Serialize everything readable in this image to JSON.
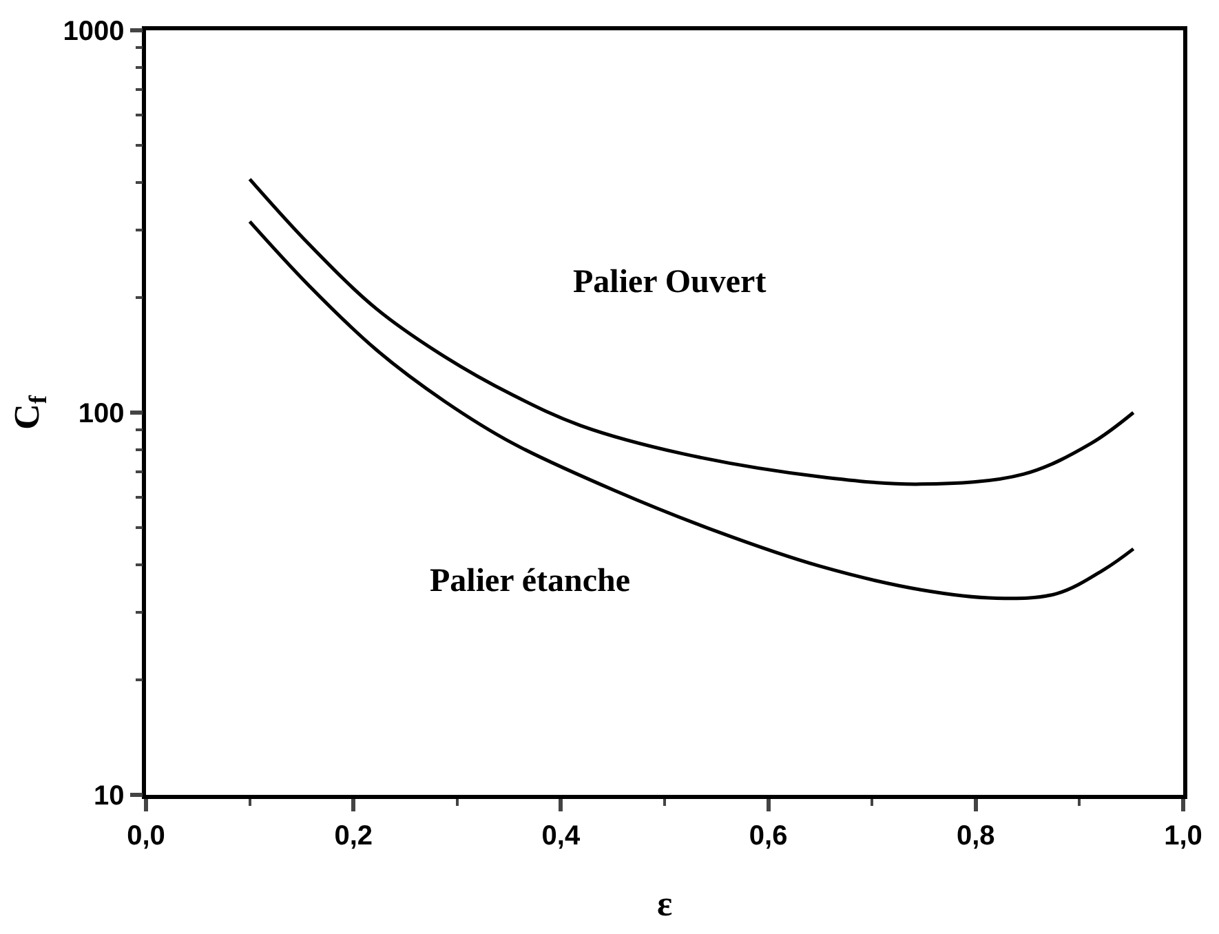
{
  "chart_data": {
    "type": "line",
    "xlabel": "ε",
    "ylabel": "C$_{f}$",
    "log": "y",
    "legend": false,
    "marker": "none",
    "line_style": "solid",
    "xlim": [
      0,
      1
    ],
    "xticks": [
      {
        "value": 0,
        "label": "0,0"
      },
      {
        "value": 0.2,
        "label": "0,2"
      },
      {
        "value": 0.4,
        "label": "0,4"
      },
      {
        "value": 0.6,
        "label": "0,6"
      },
      {
        "value": 0.8,
        "label": "0,8"
      },
      {
        "value": 1,
        "label": "1,0"
      }
    ],
    "ylim": [
      10,
      1000
    ],
    "yticks": [
      10,
      100,
      1000
    ],
    "series": [
      {
        "color": "#000000",
        "x": [
          0.1,
          0.157,
          0.222,
          0.288,
          0.354,
          0.419,
          0.518,
          0.649,
          0.747,
          0.846,
          0.911,
          0.952
        ],
        "values": [
          408,
          276,
          187,
          140,
          111,
          92.5,
          78,
          68,
          65,
          69,
          83,
          100
        ]
      },
      {
        "color": "#000000",
        "x": [
          0.1,
          0.157,
          0.222,
          0.288,
          0.354,
          0.452,
          0.551,
          0.649,
          0.747,
          0.82,
          0.878,
          0.924,
          0.952
        ],
        "values": [
          316,
          215,
          146,
          107,
          83,
          62.5,
          48.8,
          39.7,
          34.4,
          32.7,
          33.6,
          38.9,
          44
        ]
      }
    ],
    "annotations": [
      "Palier Ouvert",
      "Palier étanche"
    ]
  }
}
